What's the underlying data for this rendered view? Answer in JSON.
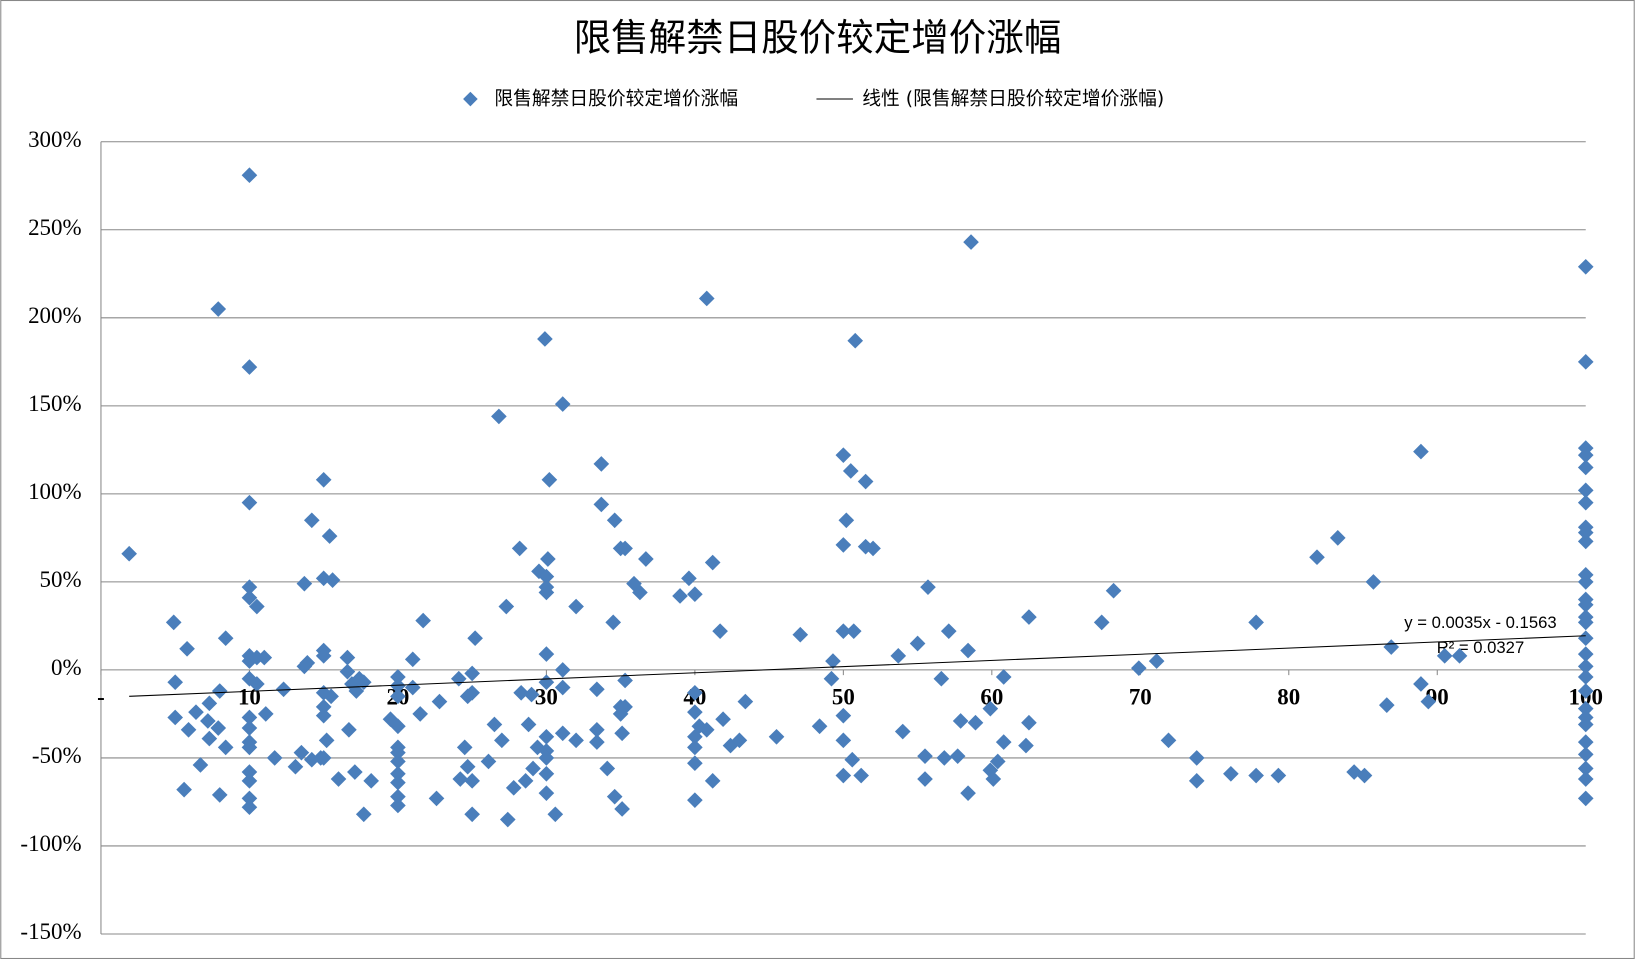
{
  "chart_data": {
    "type": "scatter",
    "title": "限售解禁日股价较定增价涨幅",
    "series": [
      {
        "name": "限售解禁日股价较定增价涨幅",
        "color": "#4a7ebb",
        "x": [
          1.9,
          4.9,
          5,
          5,
          5.8,
          5.9,
          5.6,
          6.4,
          6.7,
          7.2,
          7.3,
          7.3,
          7.9,
          8,
          7.9,
          8,
          8.4,
          8.4,
          10,
          10,
          10,
          10,
          10,
          10.5,
          10,
          10,
          10.5,
          11,
          10,
          10.5,
          10,
          10,
          10,
          10,
          10,
          10,
          10,
          10,
          11.1,
          11.7,
          12.3,
          13.1,
          13.5,
          13.7,
          13.7,
          13.9,
          14.2,
          14.2,
          14.8,
          15,
          15,
          15,
          15,
          15,
          15,
          15,
          15.2,
          15,
          15.4,
          15.6,
          15.5,
          16,
          16.6,
          16.6,
          16.7,
          16.9,
          17.1,
          17.2,
          17.4,
          17.7,
          17.7,
          18.2,
          19.5,
          20,
          20,
          20,
          20,
          20,
          20,
          20,
          20,
          20,
          20,
          20,
          21,
          21,
          21.5,
          21.7,
          22.6,
          22.8,
          24.1,
          24.5,
          24.2,
          24.7,
          24.7,
          25,
          25,
          25,
          25.2,
          25,
          26.1,
          26.5,
          26.8,
          27,
          27.3,
          27.4,
          27.8,
          28.2,
          28.3,
          28.6,
          28.8,
          29,
          29.1,
          29.4,
          29.5,
          29.9,
          30,
          30,
          30,
          30,
          30,
          30,
          30,
          30,
          30,
          30,
          30.2,
          30.1,
          30.6,
          31.1,
          31.1,
          31.1,
          31.1,
          32,
          32,
          33.4,
          33.4,
          33.7,
          33.7,
          33.4,
          34.1,
          34.5,
          34.6,
          34.6,
          35,
          35,
          35,
          35.1,
          35.1,
          35.3,
          35.3,
          35.3,
          35.9,
          36.3,
          36.7,
          39,
          39.6,
          40,
          40,
          40,
          40,
          40,
          40,
          40,
          40.3,
          40.8,
          40.8,
          41.2,
          41.2,
          41.7,
          41.9,
          42.4,
          43,
          43.4,
          45.5,
          47.1,
          48.4,
          49.2,
          49.3,
          50,
          50.2,
          50,
          50,
          50,
          50,
          50,
          50.5,
          50.7,
          50.6,
          50.8,
          51.5,
          51.2,
          51.5,
          52,
          53.7,
          54,
          55,
          55.5,
          55.5,
          55.7,
          56.6,
          56.8,
          57.1,
          57.7,
          57.9,
          58.4,
          58.4,
          58.6,
          58.9,
          59.9,
          59.9,
          60.1,
          60.4,
          60.8,
          60.8,
          62.3,
          62.5,
          62.5,
          67.4,
          68.2,
          69.9,
          71.1,
          71.9,
          73.8,
          73.8,
          76.1,
          77.8,
          77.8,
          79.3,
          81.9,
          83.3,
          84.4,
          85.1,
          85.7,
          86.9,
          86.6,
          88.9,
          88.9,
          89.4,
          90.5,
          91.5,
          100,
          100,
          100,
          100,
          100,
          100,
          100,
          100,
          100,
          100,
          100,
          100,
          100,
          100,
          100,
          100,
          100,
          100,
          100,
          100,
          100,
          100,
          100,
          100,
          100,
          100,
          100,
          100,
          100
        ],
        "values": [
          66,
          27,
          -7,
          -27,
          12,
          -34,
          -68,
          -24,
          -54,
          -29,
          -19,
          -39,
          205,
          -12,
          -33,
          -71,
          18,
          -44,
          281,
          172,
          95,
          47,
          41,
          36,
          8,
          5,
          7,
          7,
          -5,
          -8,
          -27,
          -33,
          -41,
          -44,
          -58,
          -63,
          -73,
          -78,
          -25,
          -50,
          -11,
          -55,
          -47,
          49,
          2,
          4,
          85,
          -51,
          -50,
          108,
          52,
          11,
          8,
          -13,
          -21,
          -26,
          -40,
          -50,
          76,
          51,
          -15,
          -62,
          7,
          -1,
          -34,
          -8,
          -58,
          -12,
          -5,
          -7,
          -82,
          -63,
          -28,
          -4,
          -9,
          -15,
          -32,
          -44,
          -47,
          -52,
          -59,
          -64,
          -72,
          -77,
          6,
          -10,
          -25,
          28,
          -73,
          -18,
          -5,
          -44,
          -62,
          -15,
          -55,
          -2,
          -13,
          -63,
          18,
          -82,
          -52,
          -31,
          144,
          -40,
          36,
          -85,
          -67,
          69,
          -13,
          -63,
          -31,
          -14,
          -56,
          -44,
          56,
          188,
          53,
          47,
          44,
          9,
          -7,
          -38,
          -46,
          -50,
          -59,
          -70,
          108,
          63,
          -82,
          151,
          0,
          -10,
          -36,
          36,
          -40,
          -11,
          -34,
          117,
          94,
          -41,
          -56,
          27,
          85,
          -72,
          69,
          -21,
          -25,
          -36,
          -79,
          69,
          -6,
          -21,
          49,
          44,
          63,
          42,
          52,
          43,
          -13,
          -24,
          -38,
          -44,
          -53,
          -74,
          -32,
          -34,
          211,
          61,
          -63,
          22,
          -28,
          -43,
          -40,
          -18,
          -38,
          20,
          -32,
          -5,
          5,
          122,
          85,
          71,
          22,
          -26,
          -40,
          -60,
          113,
          22,
          -51,
          187,
          107,
          -60,
          70,
          69,
          8,
          -35,
          15,
          -49,
          -62,
          47,
          -5,
          -50,
          22,
          -49,
          -29,
          11,
          -70,
          243,
          -30,
          -22,
          -57,
          -62,
          -52,
          -4,
          -41,
          -43,
          30,
          -30,
          27,
          45,
          1,
          5,
          -40,
          -50,
          -63,
          -59,
          27,
          -60,
          -60,
          64,
          75,
          -58,
          -60,
          50,
          13,
          -20,
          124,
          -8,
          -18,
          8,
          8,
          229,
          175,
          126,
          122,
          115,
          102,
          95,
          81,
          78,
          73,
          54,
          50,
          40,
          37,
          30,
          27,
          18,
          9,
          2,
          -4,
          -12,
          -22,
          -27,
          -31,
          -41,
          -48,
          -56,
          -62,
          -73
        ]
      }
    ],
    "trendline": {
      "name": "线性 (限售解禁日股价较定增价涨幅)",
      "color": "#000000",
      "x": [
        1.9,
        100
      ],
      "values": [
        -15,
        19.4
      ]
    },
    "annotations": [
      "y = 0.0035x - 0.1563",
      "R² = 0.0327"
    ],
    "xlim": [
      0,
      100
    ],
    "xticks": [
      {
        "value": 0,
        "label": "-"
      },
      10,
      20,
      30,
      40,
      50,
      60,
      70,
      80,
      90,
      100
    ],
    "ylim": [
      -150,
      300
    ],
    "yticks": [
      {
        "value": -150,
        "label": "-150%"
      },
      {
        "value": -100,
        "label": "-100%"
      },
      {
        "value": -50,
        "label": "-50%"
      },
      {
        "value": 0,
        "label": "0%"
      },
      {
        "value": 50,
        "label": "50%"
      },
      {
        "value": 100,
        "label": "100%"
      },
      {
        "value": 150,
        "label": "150%"
      },
      {
        "value": 200,
        "label": "200%"
      },
      {
        "value": 250,
        "label": "250%"
      },
      {
        "value": 300,
        "label": "300%"
      }
    ],
    "grid": true
  }
}
